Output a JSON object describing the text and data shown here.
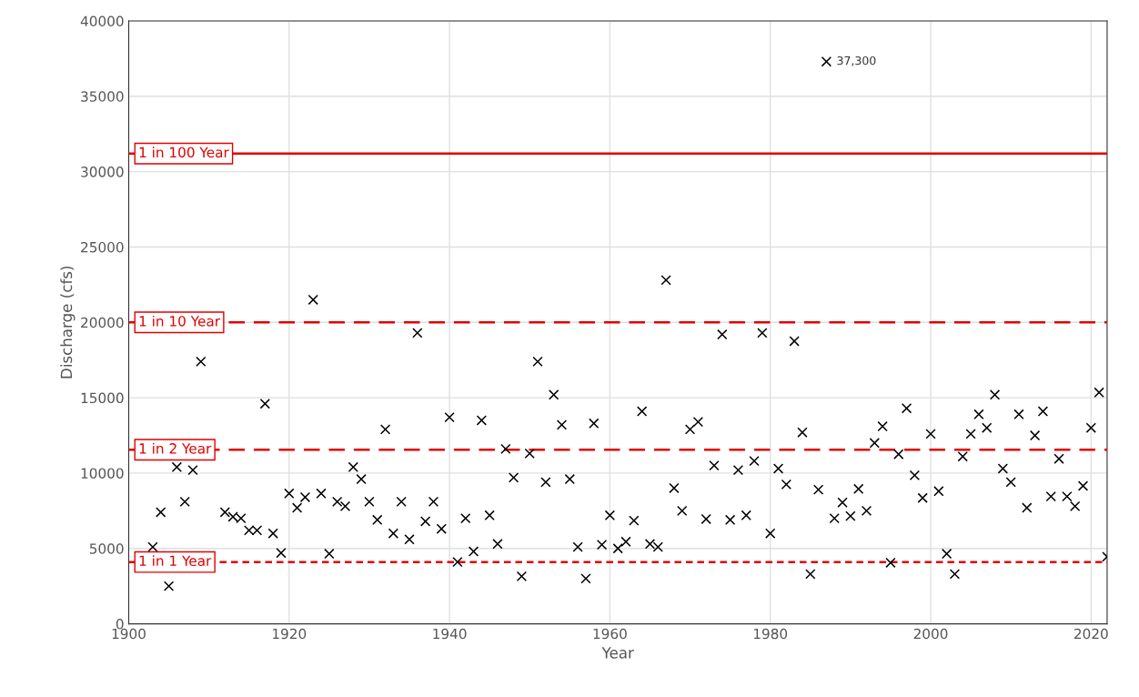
{
  "chart_data": {
    "type": "scatter",
    "xlabel": "Year",
    "ylabel": "Discharge (cfs)",
    "xlim": [
      1900,
      2022
    ],
    "xticks": [
      1900,
      1920,
      1940,
      1960,
      1980,
      2000,
      2020
    ],
    "ylim": [
      0,
      40000
    ],
    "yticks": [
      0,
      5000,
      10000,
      15000,
      20000,
      25000,
      30000,
      35000,
      40000
    ],
    "grid": true,
    "marker": "cross",
    "legend": false,
    "x": [
      1903,
      1904,
      1905,
      1906,
      1907,
      1908,
      1909,
      1912,
      1913,
      1914,
      1915,
      1916,
      1917,
      1918,
      1919,
      1920,
      1921,
      1922,
      1923,
      1924,
      1925,
      1926,
      1927,
      1928,
      1929,
      1930,
      1931,
      1932,
      1933,
      1934,
      1935,
      1936,
      1937,
      1938,
      1939,
      1940,
      1941,
      1942,
      1943,
      1944,
      1945,
      1946,
      1947,
      1948,
      1949,
      1950,
      1951,
      1952,
      1953,
      1954,
      1955,
      1956,
      1957,
      1958,
      1959,
      1960,
      1961,
      1962,
      1963,
      1964,
      1965,
      1966,
      1967,
      1968,
      1969,
      1970,
      1971,
      1972,
      1973,
      1974,
      1975,
      1976,
      1977,
      1978,
      1979,
      1980,
      1981,
      1982,
      1983,
      1984,
      1985,
      1986,
      1987,
      1988,
      1989,
      1990,
      1991,
      1992,
      1993,
      1994,
      1995,
      1996,
      1997,
      1998,
      1999,
      2000,
      2001,
      2002,
      2003,
      2004,
      2005,
      2006,
      2007,
      2008,
      2009,
      2010,
      2011,
      2012,
      2013,
      2014,
      2015,
      2016,
      2017,
      2018,
      2019,
      2020,
      2021,
      2022
    ],
    "series": [
      {
        "color": "#000000",
        "values": [
          5100,
          7400,
          2500,
          10400,
          8100,
          10200,
          17400,
          7400,
          7100,
          7000,
          6200,
          6200,
          14600,
          6000,
          4700,
          8650,
          7700,
          8400,
          21500,
          8650,
          4650,
          8100,
          7800,
          10400,
          9600,
          8100,
          6900,
          12900,
          6000,
          8100,
          5600,
          19300,
          6800,
          8100,
          6300,
          13700,
          4100,
          7000,
          4800,
          13500,
          7200,
          5300,
          11600,
          9700,
          3150,
          11300,
          17400,
          9400,
          15200,
          13200,
          9600,
          5100,
          3000,
          13300,
          5250,
          7200,
          5000,
          5450,
          6850,
          14100,
          5300,
          5100,
          22800,
          9000,
          7500,
          12900,
          13400,
          6950,
          10500,
          19200,
          6900,
          10200,
          7200,
          10800,
          19300,
          6000,
          10300,
          9250,
          18750,
          12700,
          3300,
          8900,
          37300,
          7000,
          8050,
          7150,
          8950,
          7500,
          12000,
          13100,
          4050,
          11250,
          14300,
          9850,
          8350,
          12600,
          8800,
          4650,
          3300,
          11100,
          12600,
          13900,
          13000,
          15200,
          10300,
          9400,
          13900,
          7700,
          12500,
          14100,
          8450,
          10950,
          8450,
          7800,
          9150,
          13000,
          15350,
          4450
        ]
      }
    ],
    "ref_lines": [
      {
        "axis": "y",
        "value": 31200,
        "label": "1 in 100 Year",
        "color": "#e00000",
        "line_style": "solid"
      },
      {
        "axis": "y",
        "value": 20000,
        "label": "1 in 10 Year",
        "color": "#e00000",
        "line_style": "dashed"
      },
      {
        "axis": "y",
        "value": 11550,
        "label": "1 in 2 Year",
        "color": "#e00000",
        "line_style": "dashed"
      },
      {
        "axis": "y",
        "value": 4100,
        "label": "1 in 1 Year",
        "color": "#e00000",
        "line_style": "dotted"
      }
    ],
    "annotations": [
      {
        "text": "37,300",
        "x": 1987,
        "y": 37300
      }
    ]
  }
}
